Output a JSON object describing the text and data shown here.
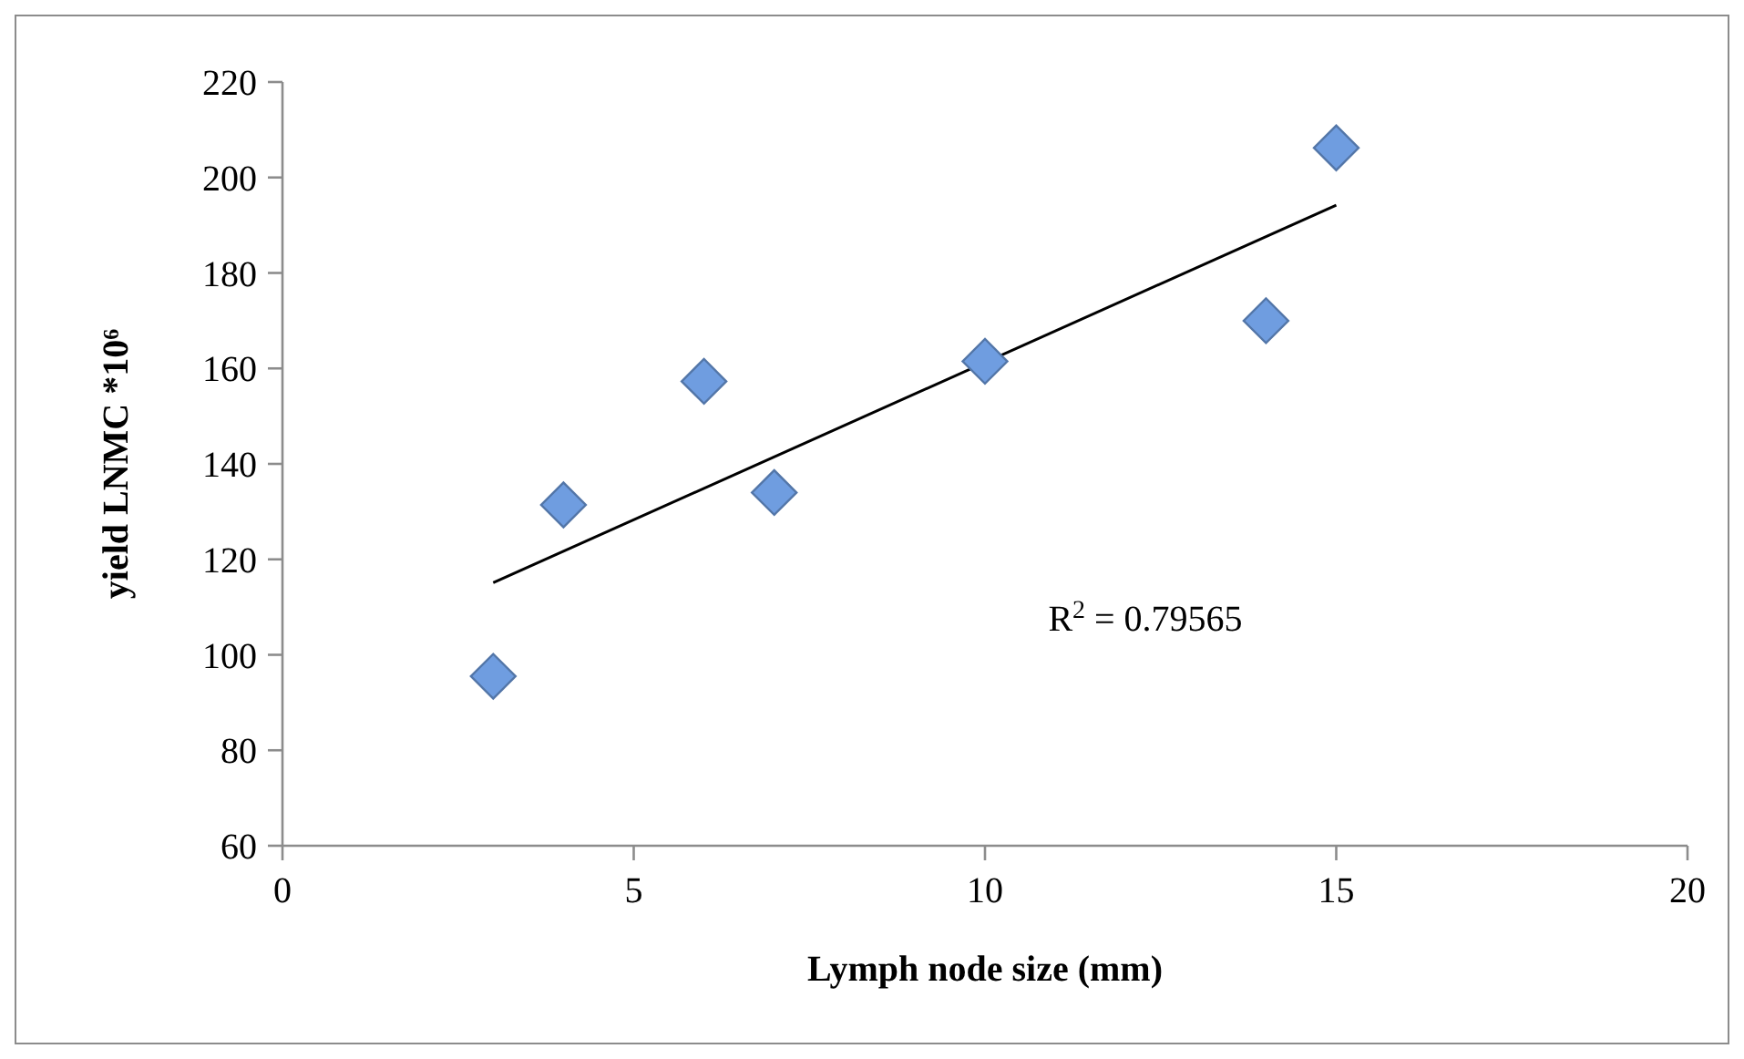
{
  "chart_data": {
    "type": "scatter",
    "xlabel": "Lymph node size (mm)",
    "ylabel": "yield LNMC *10⁶",
    "xlim": [
      0,
      20
    ],
    "xticks": [
      0,
      5,
      10,
      15,
      20
    ],
    "ylim": [
      60,
      220
    ],
    "yticks": [
      60,
      80,
      100,
      120,
      140,
      160,
      180,
      200,
      220
    ],
    "grid": false,
    "marker": "diamond",
    "series": [
      {
        "color": "#6f9de0",
        "x": [
          3,
          4,
          6,
          7,
          10,
          14,
          15
        ],
        "values": [
          95.5,
          131.4,
          157.3,
          134,
          161.5,
          170,
          206.2
        ]
      },
      {
        "type": "line",
        "color": "#000000",
        "marker": "none",
        "x": [
          3,
          15
        ],
        "values": [
          115.1,
          194.2
        ]
      }
    ],
    "annotations": [
      "R$^{2}$ = 0.79565"
    ]
  }
}
